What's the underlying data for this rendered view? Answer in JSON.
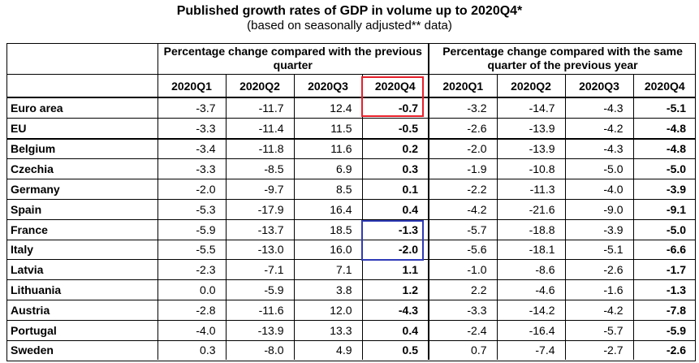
{
  "title": "Published growth rates of GDP in volume up to 2020Q4*",
  "subtitle": "(based on seasonally adjusted** data)",
  "groups": {
    "qoq": "Percentage change compared with the previous quarter",
    "yoy": "Percentage change compared with the same quarter of the previous year"
  },
  "quarters": [
    "2020Q1",
    "2020Q2",
    "2020Q3",
    "2020Q4"
  ],
  "highlight_colors": {
    "red": "#e8202a",
    "blue": "#2f3bb5"
  },
  "rows": [
    {
      "country": "Euro area",
      "qoq": [
        "-3.7",
        "-11.7",
        "12.4",
        "-0.7"
      ],
      "yoy": [
        "-3.2",
        "-14.7",
        "-4.3",
        "-5.1"
      ]
    },
    {
      "country": "EU",
      "qoq": [
        "-3.3",
        "-11.4",
        "11.5",
        "-0.5"
      ],
      "yoy": [
        "-2.6",
        "-13.9",
        "-4.2",
        "-4.8"
      ]
    },
    {
      "country": "Belgium",
      "qoq": [
        "-3.4",
        "-11.8",
        "11.6",
        "0.2"
      ],
      "yoy": [
        "-2.0",
        "-13.9",
        "-4.3",
        "-4.8"
      ]
    },
    {
      "country": "Czechia",
      "qoq": [
        "-3.3",
        "-8.5",
        "6.9",
        "0.3"
      ],
      "yoy": [
        "-1.9",
        "-10.8",
        "-5.0",
        "-5.0"
      ]
    },
    {
      "country": "Germany",
      "qoq": [
        "-2.0",
        "-9.7",
        "8.5",
        "0.1"
      ],
      "yoy": [
        "-2.2",
        "-11.3",
        "-4.0",
        "-3.9"
      ]
    },
    {
      "country": "Spain",
      "qoq": [
        "-5.3",
        "-17.9",
        "16.4",
        "0.4"
      ],
      "yoy": [
        "-4.2",
        "-21.6",
        "-9.0",
        "-9.1"
      ]
    },
    {
      "country": "France",
      "qoq": [
        "-5.9",
        "-13.7",
        "18.5",
        "-1.3"
      ],
      "yoy": [
        "-5.7",
        "-18.8",
        "-3.9",
        "-5.0"
      ]
    },
    {
      "country": "Italy",
      "qoq": [
        "-5.5",
        "-13.0",
        "16.0",
        "-2.0"
      ],
      "yoy": [
        "-5.6",
        "-18.1",
        "-5.1",
        "-6.6"
      ]
    },
    {
      "country": "Latvia",
      "qoq": [
        "-2.3",
        "-7.1",
        "7.1",
        "1.1"
      ],
      "yoy": [
        "-1.0",
        "-8.6",
        "-2.6",
        "-1.7"
      ]
    },
    {
      "country": "Lithuania",
      "qoq": [
        "0.0",
        "-5.9",
        "3.8",
        "1.2"
      ],
      "yoy": [
        "2.2",
        "-4.6",
        "-1.6",
        "-1.3"
      ]
    },
    {
      "country": "Austria",
      "qoq": [
        "-2.8",
        "-11.6",
        "12.0",
        "-4.3"
      ],
      "yoy": [
        "-3.3",
        "-14.2",
        "-4.2",
        "-7.8"
      ]
    },
    {
      "country": "Portugal",
      "qoq": [
        "-4.0",
        "-13.9",
        "13.3",
        "0.4"
      ],
      "yoy": [
        "-2.4",
        "-16.4",
        "-5.7",
        "-5.9"
      ]
    },
    {
      "country": "Sweden",
      "qoq": [
        "0.3",
        "-8.0",
        "4.9",
        "0.5"
      ],
      "yoy": [
        "0.7",
        "-7.4",
        "-2.7",
        "-2.6"
      ]
    }
  ]
}
